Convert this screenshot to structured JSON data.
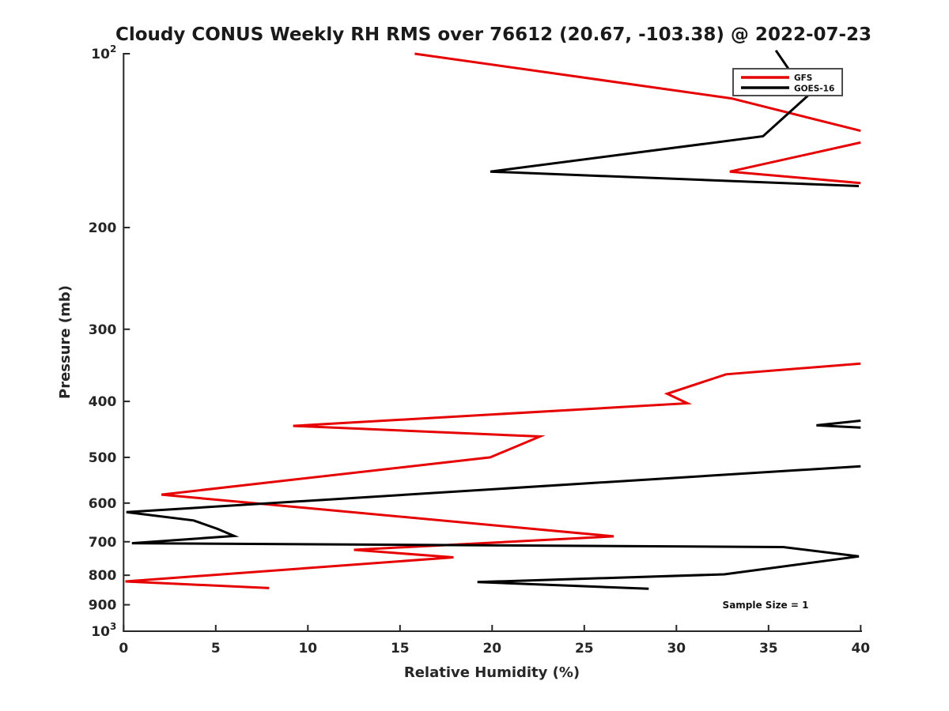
{
  "chart_data": {
    "type": "line",
    "title": "Cloudy CONUS Weekly RH RMS over 76612 (20.67, -103.38) @ 2022-07-23",
    "xlabel": "Relative Humidity (%)",
    "ylabel": "Pressure (mb)",
    "xlim": [
      0,
      40
    ],
    "ylim_pressure_mb": [
      100,
      1000
    ],
    "yscale": "log",
    "y_axis_inverted": true,
    "grid": false,
    "xticks": [
      0,
      5,
      10,
      15,
      20,
      25,
      30,
      35,
      40
    ],
    "yticks": [
      {
        "p": 100,
        "base": "10",
        "sup": "2"
      },
      {
        "p": 200,
        "base": "200"
      },
      {
        "p": 300,
        "base": "300"
      },
      {
        "p": 400,
        "base": "400"
      },
      {
        "p": 500,
        "base": "500"
      },
      {
        "p": 600,
        "base": "600"
      },
      {
        "p": 700,
        "base": "700"
      },
      {
        "p": 800,
        "base": "800"
      },
      {
        "p": 900,
        "base": "900"
      },
      {
        "p": 1000,
        "base": "10",
        "sup": "3"
      }
    ],
    "legend": {
      "position": "upper right",
      "entries": [
        {
          "label": "GFS",
          "color": "#e60000"
        },
        {
          "label": "GOES-16",
          "color": "#000000"
        }
      ]
    },
    "annotation": {
      "text": "Sample Size = 1"
    },
    "axis_color": "#262626",
    "line_width": 3,
    "series": [
      {
        "name": "GFS",
        "color": "#e60000",
        "note": "points are [relative_humidity_percent, pressure_mb]; segments are clipped at RH=40",
        "segments": [
          [
            [
              15.8,
              100
            ],
            [
              33.0,
              119.5
            ],
            [
              40,
              136
            ]
          ],
          [
            [
              40,
              142.5
            ],
            [
              32.9,
              160
            ],
            [
              40,
              167.5
            ]
          ],
          [
            [
              40,
              344
            ],
            [
              32.7,
              359
            ],
            [
              29.5,
              388
            ],
            [
              30.6,
              403
            ],
            [
              9.2,
              441
            ],
            [
              22.6,
              460
            ],
            [
              19.9,
              500
            ],
            [
              2.05,
              580
            ],
            [
              26.6,
              685
            ],
            [
              12.5,
              723
            ],
            [
              17.9,
              745
            ],
            [
              0.1,
              820
            ],
            [
              7.9,
              842
            ]
          ]
        ]
      },
      {
        "name": "GOES-16",
        "color": "#000000",
        "note": "points are [relative_humidity_percent, pressure_mb]; segments are clipped at RH=40",
        "segments": [
          [
            [
              35.4,
              98.7
            ],
            [
              37.1,
              118.5
            ],
            [
              34.7,
              139
            ],
            [
              19.9,
              160
            ],
            [
              39.9,
              169.5
            ]
          ],
          [
            [
              40,
              432
            ],
            [
              37.6,
              440
            ],
            [
              40,
              444
            ]
          ],
          [
            [
              40,
              518
            ],
            [
              0.15,
              622
            ],
            [
              3.8,
              643
            ],
            [
              5.1,
              665
            ],
            [
              6.0,
              684
            ],
            [
              0.45,
              704
            ],
            [
              35.8,
              715
            ],
            [
              39.9,
              742
            ],
            [
              32.6,
              797
            ],
            [
              19.2,
              822
            ],
            [
              28.5,
              844
            ]
          ]
        ]
      }
    ]
  }
}
